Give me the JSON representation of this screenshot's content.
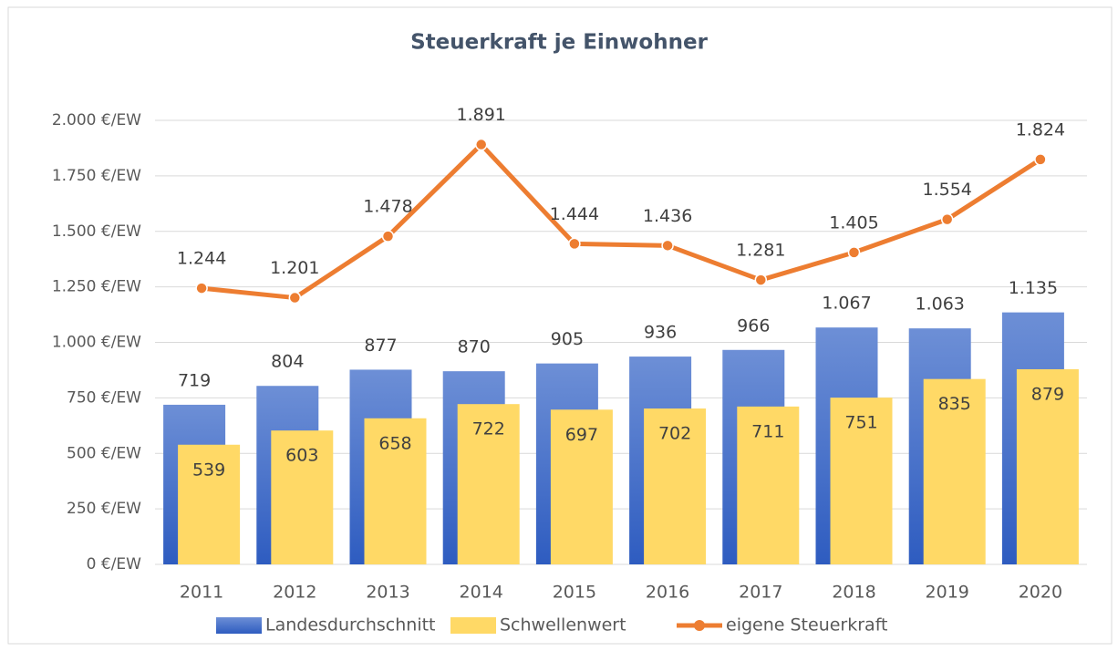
{
  "chart_data": {
    "type": "bar",
    "title": "Steuerkraft je Einwohner",
    "categories": [
      "2011",
      "2012",
      "2013",
      "2014",
      "2015",
      "2016",
      "2017",
      "2018",
      "2019",
      "2020"
    ],
    "ylim": [
      0,
      2000
    ],
    "yticks": [
      {
        "value": 0,
        "label": "0 €/EW"
      },
      {
        "value": 250,
        "label": "250 €/EW"
      },
      {
        "value": 500,
        "label": "500 €/EW"
      },
      {
        "value": 750,
        "label": "750 €/EW"
      },
      {
        "value": 1000,
        "label": "1.000 €/EW"
      },
      {
        "value": 1250,
        "label": "1.250 €/EW"
      },
      {
        "value": 1500,
        "label": "1.500 €/EW"
      },
      {
        "value": 1750,
        "label": "1.750 €/EW"
      },
      {
        "value": 2000,
        "label": "2.000 €/EW"
      }
    ],
    "grid": true,
    "series": [
      {
        "name": "Landesdurchschnitt",
        "type": "bar",
        "color": "#4472c4",
        "values": [
          719,
          804,
          877,
          870,
          905,
          936,
          966,
          1067,
          1063,
          1135
        ],
        "value_labels": [
          "719",
          "804",
          "877",
          "870",
          "905",
          "936",
          "966",
          "1.067",
          "1.063",
          "1.135"
        ]
      },
      {
        "name": "Schwellenwert",
        "type": "bar",
        "color": "#ffd966",
        "values": [
          539,
          603,
          658,
          722,
          697,
          702,
          711,
          751,
          835,
          879
        ],
        "value_labels": [
          "539",
          "603",
          "658",
          "722",
          "697",
          "702",
          "711",
          "751",
          "835",
          "879"
        ]
      },
      {
        "name": "eigene Steuerkraft",
        "type": "line",
        "color": "#ed7d31",
        "values": [
          1244,
          1201,
          1478,
          1891,
          1444,
          1436,
          1281,
          1405,
          1554,
          1824
        ],
        "value_labels": [
          "1.244",
          "1.201",
          "1.478",
          "1.891",
          "1.444",
          "1.436",
          "1.281",
          "1.405",
          "1.554",
          "1.824"
        ]
      }
    ]
  }
}
